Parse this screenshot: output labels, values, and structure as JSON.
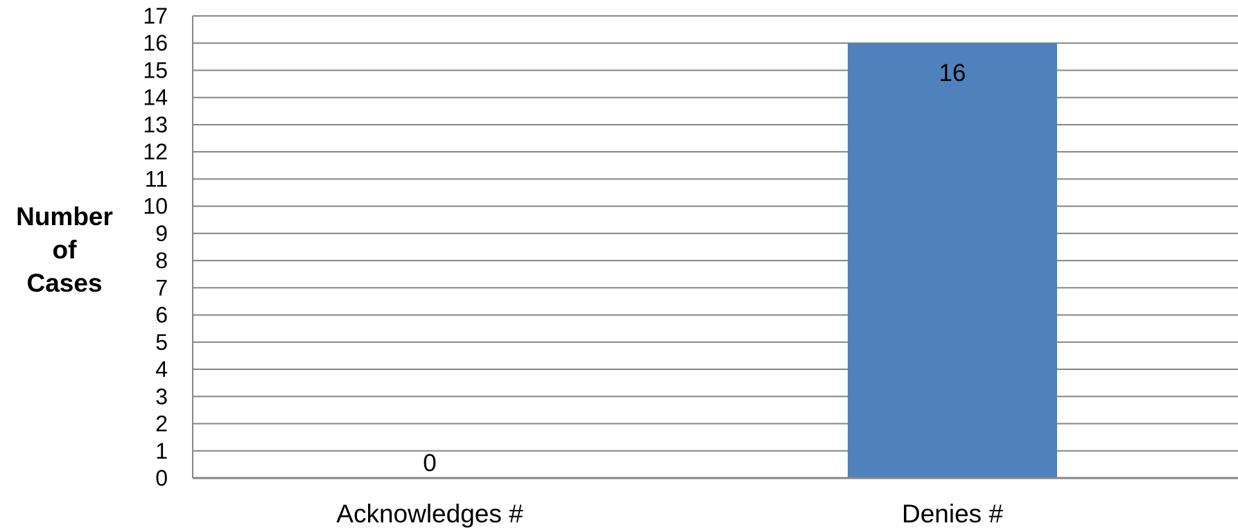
{
  "chart_data": {
    "type": "bar",
    "categories": [
      "Acknowledges #",
      "Denies #"
    ],
    "values": [
      0,
      16
    ],
    "data_labels": [
      "0",
      "16"
    ],
    "ylabel": [
      "Number",
      "of",
      "Cases"
    ],
    "xlabel": "",
    "title": "",
    "ylim": [
      0,
      17
    ],
    "yticks": [
      "0",
      "1",
      "2",
      "3",
      "4",
      "5",
      "6",
      "7",
      "8",
      "9",
      "10",
      "11",
      "12",
      "13",
      "14",
      "15",
      "16",
      "17"
    ],
    "grid": true,
    "legend": "none",
    "bar_color": "#4F81BD",
    "grid_color": "#868686"
  }
}
